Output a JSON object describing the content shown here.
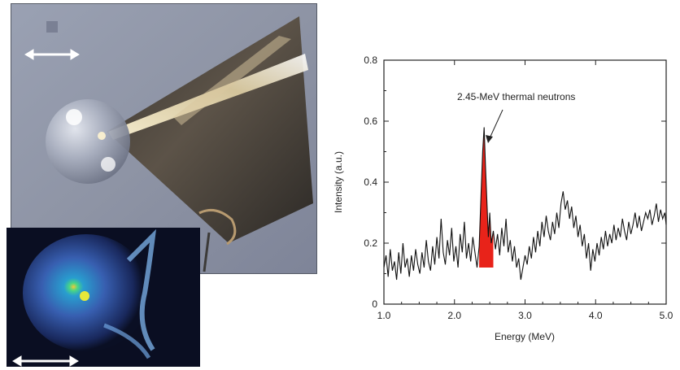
{
  "figure": {
    "top_photo": {
      "content": "droplet-on-cone-target",
      "scale_bar": "double-arrow"
    },
    "bottom_photo": {
      "content": "false-color-emission-image",
      "scale_bar": "double-arrow"
    }
  },
  "chart_data": {
    "type": "line",
    "title": "",
    "xlabel": "Energy (MeV)",
    "ylabel": "Intensity (a.u.)",
    "xlim": [
      1.0,
      5.0
    ],
    "ylim": [
      0,
      0.8
    ],
    "x_ticks": [
      "1.0",
      "2.0",
      "3.0",
      "4.0",
      "5.0"
    ],
    "y_ticks": [
      "0",
      "0.2",
      "0.4",
      "0.6",
      "0.8"
    ],
    "annotation": "2.45-MeV thermal neutrons",
    "line_color": "#111111",
    "peak_color": "#e8231a",
    "peak_range": [
      2.35,
      2.55
    ],
    "series": [
      {
        "values": [
          [
            1.0,
            0.12
          ],
          [
            1.03,
            0.16
          ],
          [
            1.06,
            0.09
          ],
          [
            1.09,
            0.18
          ],
          [
            1.12,
            0.11
          ],
          [
            1.15,
            0.14
          ],
          [
            1.18,
            0.08
          ],
          [
            1.21,
            0.17
          ],
          [
            1.24,
            0.1
          ],
          [
            1.27,
            0.2
          ],
          [
            1.3,
            0.12
          ],
          [
            1.33,
            0.15
          ],
          [
            1.36,
            0.09
          ],
          [
            1.39,
            0.16
          ],
          [
            1.42,
            0.11
          ],
          [
            1.45,
            0.18
          ],
          [
            1.48,
            0.13
          ],
          [
            1.51,
            0.1
          ],
          [
            1.54,
            0.17
          ],
          [
            1.57,
            0.12
          ],
          [
            1.6,
            0.21
          ],
          [
            1.63,
            0.14
          ],
          [
            1.66,
            0.11
          ],
          [
            1.69,
            0.19
          ],
          [
            1.72,
            0.13
          ],
          [
            1.75,
            0.22
          ],
          [
            1.78,
            0.15
          ],
          [
            1.81,
            0.28
          ],
          [
            1.84,
            0.17
          ],
          [
            1.87,
            0.13
          ],
          [
            1.9,
            0.21
          ],
          [
            1.93,
            0.16
          ],
          [
            1.96,
            0.25
          ],
          [
            1.99,
            0.14
          ],
          [
            2.02,
            0.19
          ],
          [
            2.05,
            0.12
          ],
          [
            2.08,
            0.23
          ],
          [
            2.11,
            0.17
          ],
          [
            2.14,
            0.27
          ],
          [
            2.17,
            0.15
          ],
          [
            2.2,
            0.2
          ],
          [
            2.23,
            0.14
          ],
          [
            2.26,
            0.22
          ],
          [
            2.29,
            0.17
          ],
          [
            2.32,
            0.12
          ],
          [
            2.35,
            0.19
          ],
          [
            2.38,
            0.38
          ],
          [
            2.4,
            0.5
          ],
          [
            2.42,
            0.58
          ],
          [
            2.44,
            0.45
          ],
          [
            2.46,
            0.33
          ],
          [
            2.48,
            0.22
          ],
          [
            2.5,
            0.3
          ],
          [
            2.52,
            0.2
          ],
          [
            2.55,
            0.24
          ],
          [
            2.58,
            0.18
          ],
          [
            2.61,
            0.23
          ],
          [
            2.64,
            0.16
          ],
          [
            2.67,
            0.25
          ],
          [
            2.7,
            0.19
          ],
          [
            2.73,
            0.28
          ],
          [
            2.76,
            0.17
          ],
          [
            2.79,
            0.21
          ],
          [
            2.82,
            0.14
          ],
          [
            2.85,
            0.19
          ],
          [
            2.88,
            0.12
          ],
          [
            2.91,
            0.15
          ],
          [
            2.94,
            0.08
          ],
          [
            2.97,
            0.12
          ],
          [
            3.0,
            0.16
          ],
          [
            3.03,
            0.13
          ],
          [
            3.06,
            0.19
          ],
          [
            3.09,
            0.15
          ],
          [
            3.12,
            0.22
          ],
          [
            3.15,
            0.17
          ],
          [
            3.18,
            0.24
          ],
          [
            3.21,
            0.19
          ],
          [
            3.24,
            0.27
          ],
          [
            3.27,
            0.22
          ],
          [
            3.3,
            0.29
          ],
          [
            3.33,
            0.24
          ],
          [
            3.36,
            0.21
          ],
          [
            3.39,
            0.27
          ],
          [
            3.42,
            0.23
          ],
          [
            3.45,
            0.3
          ],
          [
            3.48,
            0.25
          ],
          [
            3.51,
            0.33
          ],
          [
            3.54,
            0.37
          ],
          [
            3.57,
            0.31
          ],
          [
            3.6,
            0.34
          ],
          [
            3.63,
            0.28
          ],
          [
            3.66,
            0.32
          ],
          [
            3.69,
            0.25
          ],
          [
            3.72,
            0.29
          ],
          [
            3.75,
            0.22
          ],
          [
            3.78,
            0.26
          ],
          [
            3.81,
            0.19
          ],
          [
            3.84,
            0.23
          ],
          [
            3.87,
            0.15
          ],
          [
            3.9,
            0.2
          ],
          [
            3.93,
            0.11
          ],
          [
            3.96,
            0.18
          ],
          [
            3.99,
            0.14
          ],
          [
            4.02,
            0.2
          ],
          [
            4.05,
            0.16
          ],
          [
            4.08,
            0.22
          ],
          [
            4.11,
            0.18
          ],
          [
            4.14,
            0.24
          ],
          [
            4.17,
            0.19
          ],
          [
            4.2,
            0.23
          ],
          [
            4.23,
            0.2
          ],
          [
            4.26,
            0.26
          ],
          [
            4.29,
            0.21
          ],
          [
            4.32,
            0.25
          ],
          [
            4.35,
            0.22
          ],
          [
            4.38,
            0.28
          ],
          [
            4.41,
            0.24
          ],
          [
            4.44,
            0.21
          ],
          [
            4.47,
            0.27
          ],
          [
            4.5,
            0.23
          ],
          [
            4.53,
            0.26
          ],
          [
            4.56,
            0.3
          ],
          [
            4.59,
            0.25
          ],
          [
            4.62,
            0.29
          ],
          [
            4.65,
            0.24
          ],
          [
            4.68,
            0.27
          ],
          [
            4.71,
            0.3
          ],
          [
            4.74,
            0.28
          ],
          [
            4.77,
            0.31
          ],
          [
            4.8,
            0.26
          ],
          [
            4.83,
            0.29
          ],
          [
            4.86,
            0.33
          ],
          [
            4.89,
            0.27
          ],
          [
            4.92,
            0.31
          ],
          [
            4.95,
            0.28
          ],
          [
            4.98,
            0.3
          ],
          [
            5.0,
            0.26
          ]
        ]
      }
    ]
  }
}
